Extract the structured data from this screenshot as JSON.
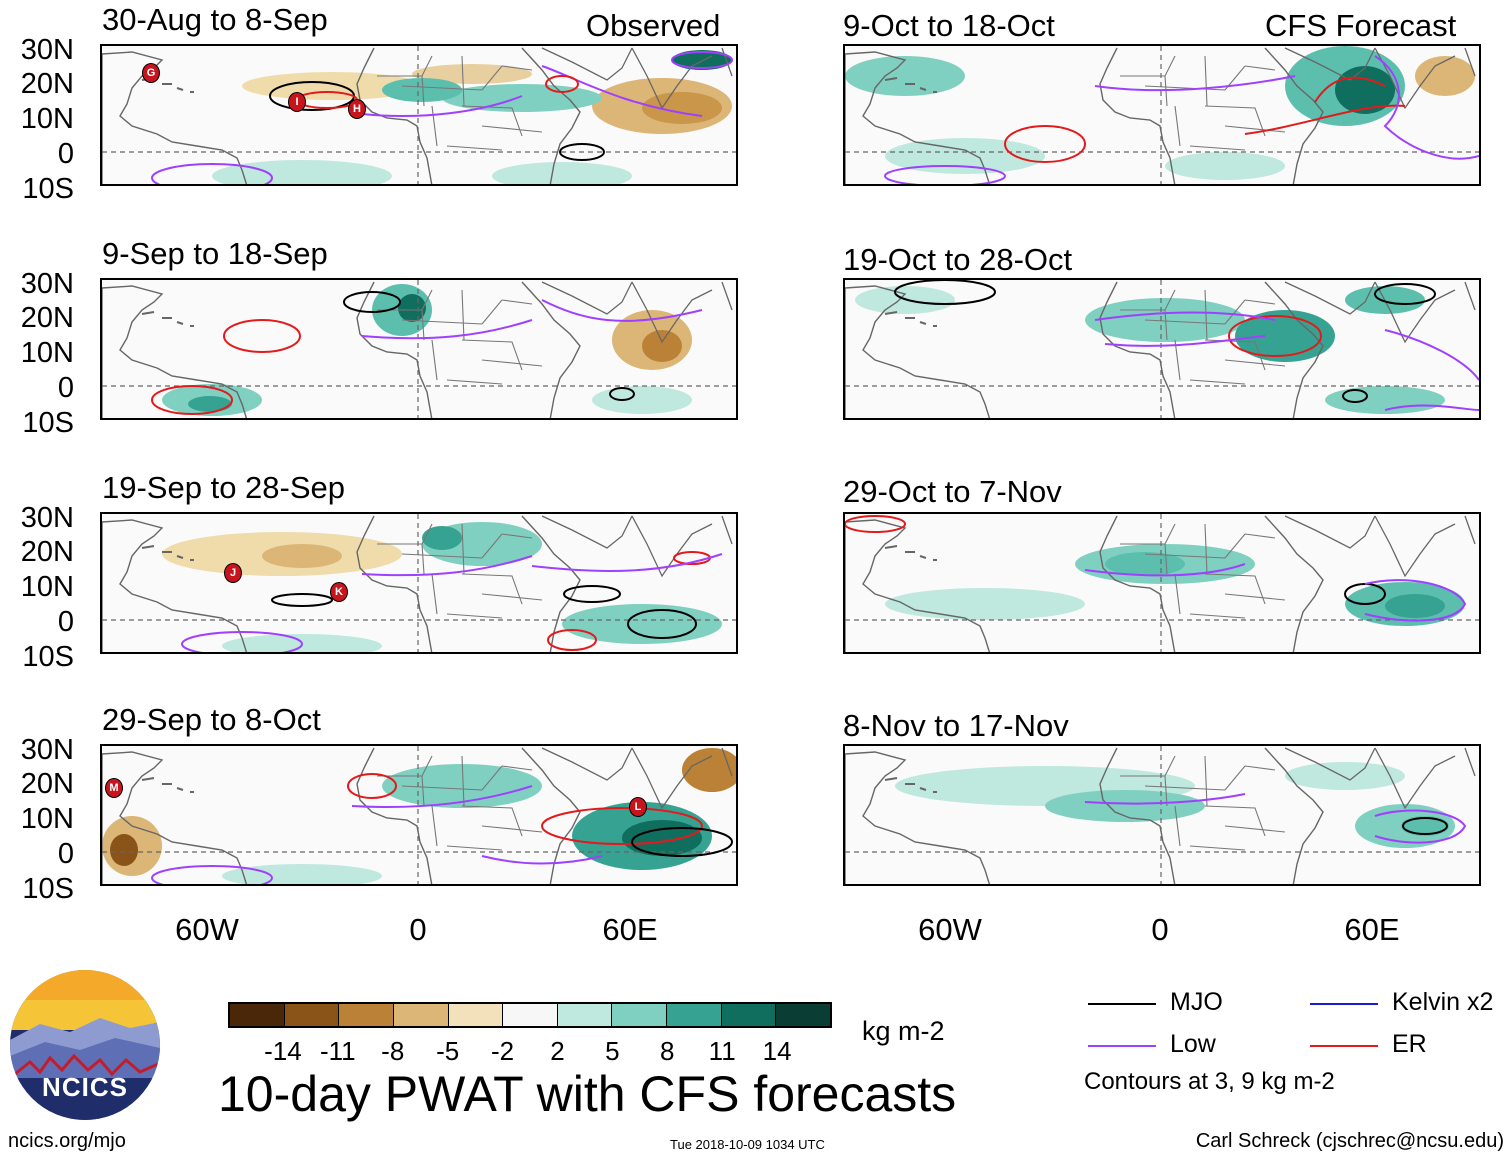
{
  "colors": {
    "mjo": "#000000",
    "low": "#a040ff",
    "kelvin": "#1a1ad8",
    "er": "#e31a1c",
    "brown_dark": "#6b3d0c",
    "tan": "#dcb676",
    "teal": "#5cbfae",
    "teal_dark": "#0f6e5e"
  },
  "lat_labels": [
    "30N",
    "20N",
    "10N",
    "0",
    "10S"
  ],
  "lon_labels": [
    "60W",
    "0",
    "60E"
  ],
  "left_column": {
    "header": "Observed",
    "panels": [
      {
        "title": "30-Aug to 8-Sep",
        "storms": [
          "G",
          "I",
          "H"
        ]
      },
      {
        "title": "9-Sep to 18-Sep",
        "storms": []
      },
      {
        "title": "19-Sep to 28-Sep",
        "storms": [
          "J",
          "K"
        ]
      },
      {
        "title": "29-Sep to 8-Oct",
        "storms": [
          "M",
          "L"
        ]
      }
    ]
  },
  "right_column": {
    "header": "CFS Forecast",
    "panels": [
      {
        "title": "9-Oct to 18-Oct"
      },
      {
        "title": "19-Oct to 28-Oct"
      },
      {
        "title": "29-Oct to 7-Nov"
      },
      {
        "title": "8-Nov to 17-Nov"
      }
    ]
  },
  "colorbar": {
    "ticks": [
      "-14",
      "-11",
      "-8",
      "-5",
      "-2",
      "2",
      "5",
      "8",
      "11",
      "14"
    ],
    "colors": [
      "#4a2708",
      "#8a5418",
      "#bb8136",
      "#dcb676",
      "#f2e1bb",
      "#f7f7f7",
      "#bfe8df",
      "#80d0c1",
      "#36a292",
      "#0f6e5e",
      "#0a3d33"
    ],
    "units": "kg m-2"
  },
  "legend": {
    "mjo": "MJO",
    "kelvin": "Kelvin x2",
    "low": "Low",
    "er": "ER",
    "note": "Contours at 3, 9 kg m-2"
  },
  "logo_text": "NCICS",
  "main_title": "10-day PWAT with CFS forecasts",
  "footer": {
    "url": "ncics.org/mjo",
    "timestamp": "Tue 2018-10-09 1034 UTC",
    "author": "Carl Schreck (cjschrec@ncsu.edu)"
  }
}
